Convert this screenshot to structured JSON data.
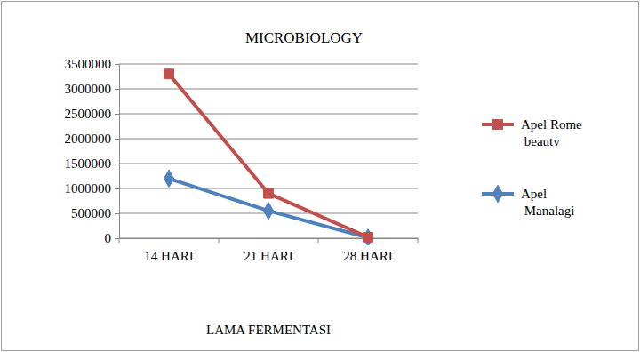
{
  "chart_data": {
    "type": "line",
    "title": "MICROBIOLOGY",
    "x_label": "LAMA FERMENTASI",
    "categories": [
      "14 HARI",
      "21 HARI",
      "28 HARI"
    ],
    "series": [
      {
        "name": "Apel Rome beauty",
        "color": "#c0504d",
        "marker": "square",
        "values": [
          3300000,
          900000,
          20000
        ]
      },
      {
        "name": "Apel Manalagi",
        "color": "#4f81bd",
        "marker": "diamond",
        "values": [
          1200000,
          550000,
          10000
        ]
      }
    ],
    "ylim": [
      0,
      3500000
    ],
    "yticks": [
      0,
      500000,
      1000000,
      1500000,
      2000000,
      2500000,
      3000000,
      3500000
    ],
    "grid": true,
    "legend": "right"
  }
}
